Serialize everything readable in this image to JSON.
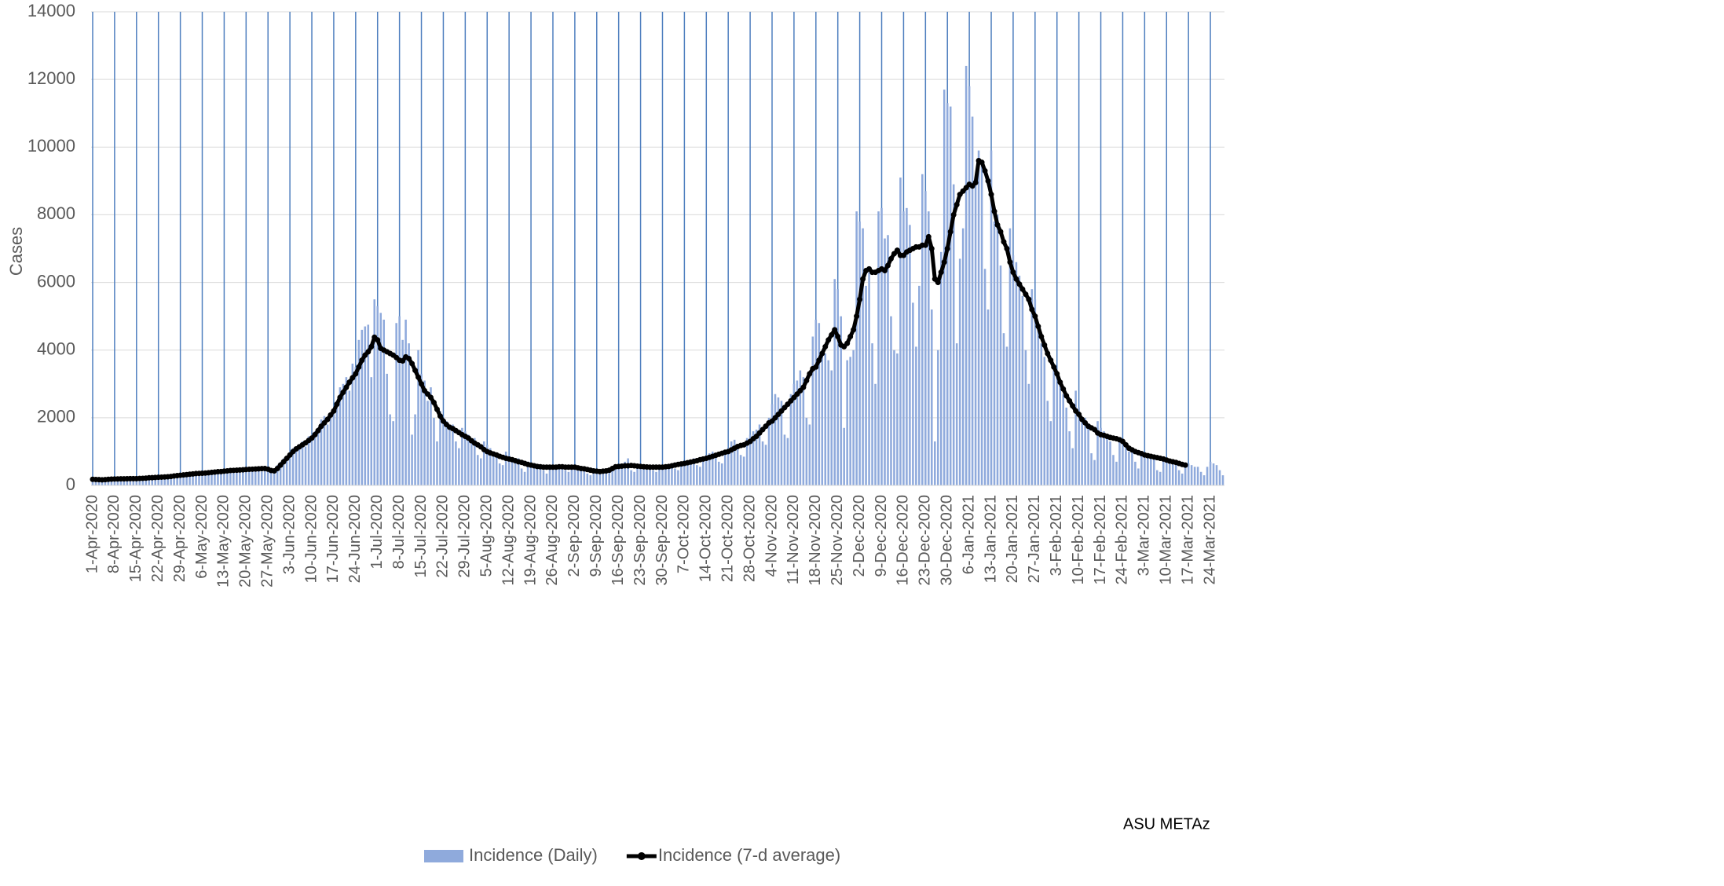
{
  "chart_data": {
    "type": "bar",
    "y_label": "Cases",
    "annotation": "ASU METAz",
    "legend": "bottom",
    "grid": true,
    "x_grid": true,
    "x_grid_color": "#4f7fbf",
    "ylim": [
      0,
      14000
    ],
    "yticks": [
      0,
      2000,
      4000,
      6000,
      8000,
      10000,
      12000,
      14000
    ],
    "categories": [
      "1-Apr-2020",
      null,
      null,
      null,
      null,
      null,
      null,
      "8-Apr-2020",
      null,
      null,
      null,
      null,
      null,
      null,
      "15-Apr-2020",
      null,
      null,
      null,
      null,
      null,
      null,
      "22-Apr-2020",
      null,
      null,
      null,
      null,
      null,
      null,
      "29-Apr-2020",
      null,
      null,
      null,
      null,
      null,
      null,
      "6-May-2020",
      null,
      null,
      null,
      null,
      null,
      null,
      "13-May-2020",
      null,
      null,
      null,
      null,
      null,
      null,
      "20-May-2020",
      null,
      null,
      null,
      null,
      null,
      null,
      "27-May-2020",
      null,
      null,
      null,
      null,
      null,
      null,
      "3-Jun-2020",
      null,
      null,
      null,
      null,
      null,
      null,
      "10-Jun-2020",
      null,
      null,
      null,
      null,
      null,
      null,
      "17-Jun-2020",
      null,
      null,
      null,
      null,
      null,
      null,
      "24-Jun-2020",
      null,
      null,
      null,
      null,
      null,
      null,
      "1-Jul-2020",
      null,
      null,
      null,
      null,
      null,
      null,
      "8-Jul-2020",
      null,
      null,
      null,
      null,
      null,
      null,
      "15-Jul-2020",
      null,
      null,
      null,
      null,
      null,
      null,
      "22-Jul-2020",
      null,
      null,
      null,
      null,
      null,
      null,
      "29-Jul-2020",
      null,
      null,
      null,
      null,
      null,
      null,
      "5-Aug-2020",
      null,
      null,
      null,
      null,
      null,
      null,
      "12-Aug-2020",
      null,
      null,
      null,
      null,
      null,
      null,
      "19-Aug-2020",
      null,
      null,
      null,
      null,
      null,
      null,
      "26-Aug-2020",
      null,
      null,
      null,
      null,
      null,
      null,
      "2-Sep-2020",
      null,
      null,
      null,
      null,
      null,
      null,
      "9-Sep-2020",
      null,
      null,
      null,
      null,
      null,
      null,
      "16-Sep-2020",
      null,
      null,
      null,
      null,
      null,
      null,
      "23-Sep-2020",
      null,
      null,
      null,
      null,
      null,
      null,
      "30-Sep-2020",
      null,
      null,
      null,
      null,
      null,
      null,
      "7-Oct-2020",
      null,
      null,
      null,
      null,
      null,
      null,
      "14-Oct-2020",
      null,
      null,
      null,
      null,
      null,
      null,
      "21-Oct-2020",
      null,
      null,
      null,
      null,
      null,
      null,
      "28-Oct-2020",
      null,
      null,
      null,
      null,
      null,
      null,
      "4-Nov-2020",
      null,
      null,
      null,
      null,
      null,
      null,
      "11-Nov-2020",
      null,
      null,
      null,
      null,
      null,
      null,
      "18-Nov-2020",
      null,
      null,
      null,
      null,
      null,
      null,
      "25-Nov-2020",
      null,
      null,
      null,
      null,
      null,
      null,
      "2-Dec-2020",
      null,
      null,
      null,
      null,
      null,
      null,
      "9-Dec-2020",
      null,
      null,
      null,
      null,
      null,
      null,
      "16-Dec-2020",
      null,
      null,
      null,
      null,
      null,
      null,
      "23-Dec-2020",
      null,
      null,
      null,
      null,
      null,
      null,
      "30-Dec-2020",
      null,
      null,
      null,
      null,
      null,
      null,
      "6-Jan-2021",
      null,
      null,
      null,
      null,
      null,
      null,
      "13-Jan-2021",
      null,
      null,
      null,
      null,
      null,
      null,
      "20-Jan-2021",
      null,
      null,
      null,
      null,
      null,
      null,
      "27-Jan-2021",
      null,
      null,
      null,
      null,
      null,
      null,
      "3-Feb-2021",
      null,
      null,
      null,
      null,
      null,
      null,
      "10-Feb-2021",
      null,
      null,
      null,
      null,
      null,
      null,
      "17-Feb-2021",
      null,
      null,
      null,
      null,
      null,
      null,
      "24-Feb-2021",
      null,
      null,
      null,
      null,
      null,
      null,
      "3-Mar-2021",
      null,
      null,
      null,
      null,
      null,
      null,
      "10-Mar-2021",
      null,
      null,
      null,
      null,
      null,
      null,
      "17-Mar-2021",
      null,
      null,
      null,
      null,
      null,
      null,
      "24-Mar-2021",
      null,
      null,
      null,
      null
    ],
    "series": [
      {
        "name": "Incidence (Daily)",
        "type": "bar",
        "color": "#8faadc",
        "values": [
          160,
          200,
          150,
          210,
          190,
          140,
          230,
          170,
          220,
          180,
          240,
          200,
          150,
          210,
          180,
          230,
          200,
          260,
          210,
          190,
          260,
          220,
          270,
          230,
          300,
          260,
          240,
          330,
          280,
          340,
          300,
          360,
          330,
          290,
          400,
          320,
          400,
          350,
          420,
          380,
          330,
          450,
          390,
          470,
          400,
          480,
          440,
          380,
          500,
          430,
          520,
          450,
          540,
          480,
          410,
          560,
          420,
          380,
          500,
          600,
          700,
          800,
          850,
          800,
          1100,
          1000,
          1200,
          1300,
          1150,
          1450,
          1300,
          1600,
          1700,
          1950,
          2050,
          1800,
          2100,
          2100,
          2500,
          2900,
          3000,
          3200,
          2800,
          3600,
          3500,
          4300,
          4600,
          4700,
          4750,
          3200,
          5500,
          5300,
          5100,
          4900,
          3300,
          2100,
          1900,
          4800,
          5000,
          4300,
          4900,
          4200,
          1500,
          2100,
          4000,
          3300,
          3100,
          2500,
          2900,
          2000,
          1300,
          2200,
          2000,
          1900,
          1700,
          1800,
          1300,
          1100,
          1700,
          1600,
          1500,
          1300,
          1400,
          900,
          800,
          1300,
          1200,
          1100,
          1000,
          950,
          650,
          600,
          1000,
          900,
          800,
          750,
          800,
          500,
          400,
          700,
          650,
          600,
          550,
          600,
          450,
          350,
          600,
          600,
          580,
          560,
          620,
          450,
          400,
          550,
          580,
          550,
          520,
          480,
          350,
          300,
          480,
          450,
          400,
          500,
          480,
          500,
          550,
          600,
          600,
          650,
          700,
          800,
          450,
          400,
          600,
          600,
          580,
          550,
          600,
          450,
          400,
          550,
          580,
          600,
          620,
          650,
          500,
          450,
          650,
          700,
          720,
          750,
          800,
          600,
          550,
          800,
          900,
          950,
          1000,
          950,
          700,
          650,
          1000,
          1100,
          1300,
          1350,
          1200,
          900,
          850,
          1400,
          1500,
          1600,
          1650,
          1800,
          1300,
          1200,
          2000,
          2400,
          2700,
          2600,
          2500,
          1500,
          1400,
          2700,
          3000,
          3100,
          3400,
          3200,
          2000,
          1800,
          4400,
          4900,
          4800,
          4000,
          3900,
          3700,
          3400,
          6100,
          5800,
          5000,
          1700,
          3700,
          3800,
          4000,
          8100,
          7800,
          7600,
          5900,
          6300,
          4200,
          3000,
          8100,
          8200,
          7300,
          7400,
          5000,
          4000,
          3900,
          9100,
          8100,
          8200,
          7700,
          5400,
          4100,
          5900,
          9200,
          8700,
          8100,
          5200,
          1300,
          4000,
          6900,
          11700,
          11300,
          11200,
          8900,
          4200,
          6700,
          7600,
          12400,
          11800,
          10900,
          8900,
          9900,
          9500,
          6400,
          5200,
          9900,
          7800,
          8000,
          6500,
          4500,
          4100,
          7600,
          6800,
          6600,
          6200,
          5600,
          4000,
          3000,
          5800,
          5500,
          4800,
          4200,
          3800,
          2500,
          1900,
          3600,
          3300,
          3000,
          2700,
          2300,
          1600,
          1100,
          2800,
          2300,
          1900,
          2000,
          1700,
          950,
          750,
          1900,
          1700,
          1600,
          1500,
          1300,
          900,
          700,
          1400,
          1300,
          1150,
          1000,
          1000,
          700,
          500,
          1000,
          900,
          850,
          800,
          850,
          450,
          400,
          850,
          800,
          700,
          650,
          700,
          450,
          350,
          650,
          650,
          600,
          550,
          550,
          400,
          300,
          550,
          700,
          650,
          600,
          450,
          300
        ]
      },
      {
        "name": "Incidence (7-d average)",
        "type": "line",
        "color": "#000000",
        "values": [
          180,
          175,
          170,
          165,
          170,
          180,
          185,
          190,
          192,
          195,
          195,
          198,
          200,
          200,
          200,
          205,
          210,
          215,
          225,
          230,
          235,
          240,
          245,
          250,
          255,
          265,
          280,
          290,
          300,
          310,
          320,
          330,
          340,
          350,
          355,
          360,
          365,
          375,
          385,
          395,
          405,
          410,
          420,
          430,
          440,
          445,
          450,
          455,
          460,
          470,
          475,
          480,
          485,
          490,
          495,
          500,
          480,
          440,
          430,
          500,
          600,
          700,
          800,
          900,
          1000,
          1080,
          1140,
          1200,
          1260,
          1330,
          1400,
          1500,
          1620,
          1750,
          1850,
          1950,
          2080,
          2200,
          2400,
          2600,
          2750,
          2900,
          3050,
          3180,
          3300,
          3500,
          3700,
          3850,
          3950,
          4100,
          4380,
          4300,
          4050,
          4000,
          3950,
          3900,
          3850,
          3780,
          3700,
          3680,
          3800,
          3750,
          3600,
          3400,
          3200,
          3000,
          2800,
          2700,
          2600,
          2450,
          2250,
          2050,
          1900,
          1800,
          1720,
          1680,
          1620,
          1560,
          1500,
          1450,
          1400,
          1320,
          1250,
          1200,
          1140,
          1060,
          1000,
          960,
          930,
          900,
          860,
          830,
          800,
          780,
          760,
          730,
          700,
          680,
          650,
          620,
          600,
          580,
          560,
          550,
          540,
          540,
          540,
          540,
          540,
          550,
          550,
          540,
          540,
          540,
          540,
          520,
          500,
          490,
          470,
          450,
          430,
          420,
          410,
          420,
          430,
          450,
          500,
          550,
          560,
          570,
          580,
          580,
          590,
          580,
          570,
          560,
          550,
          545,
          540,
          540,
          540,
          540,
          540,
          550,
          560,
          580,
          600,
          620,
          635,
          650,
          670,
          690,
          710,
          730,
          760,
          780,
          800,
          830,
          860,
          890,
          920,
          950,
          980,
          1000,
          1050,
          1100,
          1150,
          1180,
          1200,
          1250,
          1300,
          1380,
          1450,
          1550,
          1650,
          1750,
          1850,
          1900,
          2000,
          2100,
          2200,
          2300,
          2400,
          2500,
          2600,
          2700,
          2800,
          2900,
          3100,
          3300,
          3450,
          3500,
          3700,
          3900,
          4100,
          4300,
          4450,
          4600,
          4400,
          4150,
          4100,
          4200,
          4400,
          4600,
          5000,
          5500,
          6100,
          6350,
          6400,
          6300,
          6300,
          6350,
          6400,
          6350,
          6500,
          6700,
          6850,
          6950,
          6800,
          6800,
          6900,
          6950,
          7000,
          7050,
          7050,
          7100,
          7100,
          7350,
          7000,
          6100,
          6000,
          6300,
          6600,
          7000,
          7500,
          8000,
          8300,
          8600,
          8700,
          8800,
          8900,
          8850,
          8950,
          9600,
          9550,
          9300,
          9000,
          8600,
          8100,
          7700,
          7500,
          7200,
          7000,
          6600,
          6300,
          6100,
          5950,
          5800,
          5650,
          5500,
          5200,
          5000,
          4700,
          4400,
          4150,
          3900,
          3700,
          3500,
          3300,
          3050,
          2850,
          2650,
          2500,
          2350,
          2200,
          2100,
          1950,
          1850,
          1750,
          1700,
          1650,
          1550,
          1500,
          1480,
          1450,
          1420,
          1400,
          1380,
          1350,
          1300,
          1200,
          1100,
          1050,
          1000,
          970,
          940,
          900,
          880,
          860,
          840,
          820,
          800,
          780,
          750,
          720,
          700,
          680,
          650,
          620,
          600,
          null,
          null,
          null,
          null,
          null,
          null,
          null,
          null,
          null,
          null,
          null,
          null
        ]
      }
    ]
  }
}
